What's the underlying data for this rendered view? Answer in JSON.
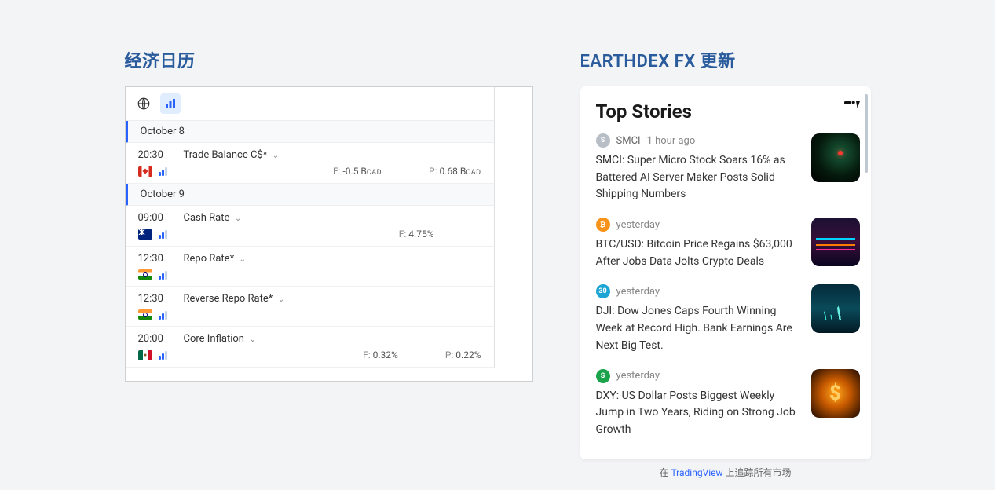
{
  "calendar": {
    "title": "经济日历",
    "dates": [
      {
        "label": "October 8",
        "events": [
          {
            "time": "20:30",
            "name": "Trade Balance C$*",
            "flag": "ca",
            "impact": "dim",
            "forecast_label": "F:",
            "forecast_value": "-0.5 B",
            "forecast_unit": "CAD",
            "prev_label": "P:",
            "prev_value": "0.68 B",
            "prev_unit": "CAD"
          }
        ]
      },
      {
        "label": "October 9",
        "events": [
          {
            "time": "09:00",
            "name": "Cash Rate",
            "flag": "nz",
            "impact": "dim",
            "forecast_label": "F:",
            "forecast_value": "4.75%",
            "forecast_unit": "",
            "prev_label": "",
            "prev_value": "",
            "prev_unit": ""
          },
          {
            "time": "12:30",
            "name": "Repo Rate*",
            "flag": "in",
            "impact": "dim",
            "forecast_label": "",
            "forecast_value": "",
            "forecast_unit": "",
            "prev_label": "",
            "prev_value": "",
            "prev_unit": ""
          },
          {
            "time": "12:30",
            "name": "Reverse Repo Rate*",
            "flag": "in",
            "impact": "dim",
            "forecast_label": "",
            "forecast_value": "",
            "forecast_unit": "",
            "prev_label": "",
            "prev_value": "",
            "prev_unit": ""
          },
          {
            "time": "20:00",
            "name": "Core Inflation",
            "flag": "mx",
            "impact": "dim",
            "forecast_label": "F:",
            "forecast_value": "0.32%",
            "forecast_unit": "",
            "prev_label": "P:",
            "prev_value": "0.22%",
            "prev_unit": ""
          }
        ]
      }
    ]
  },
  "stories": {
    "section_title": "EARTHDEX FX 更新",
    "header": "Top Stories",
    "footer_prefix": "在 ",
    "footer_link": "TradingView",
    "footer_suffix": " 上追踪所有市场",
    "items": [
      {
        "badge_text": "S",
        "badge_color": "#b8bec6",
        "symbol": "SMCI",
        "time": "1 hour ago",
        "headline": "SMCI: Super Micro Stock Soars 16% as Battered AI Server Maker Posts Solid Shipping Numbers",
        "thumb": "th-smci"
      },
      {
        "badge_text": "₿",
        "badge_color": "#f7931a",
        "symbol": "",
        "time": "yesterday",
        "headline": "BTC/USD: Bitcoin Price Regains $63,000 After Jobs Data Jolts Crypto Deals",
        "thumb": "th-btc"
      },
      {
        "badge_text": "30",
        "badge_color": "#1ca5d4",
        "symbol": "",
        "time": "yesterday",
        "headline": "DJI: Dow Jones Caps Fourth Winning Week at Record High. Bank Earnings Are Next Big Test.",
        "thumb": "th-dji"
      },
      {
        "badge_text": "S",
        "badge_color": "#1aa34a",
        "symbol": "",
        "time": "yesterday",
        "headline": "DXY: US Dollar Posts Biggest Weekly Jump in Two Years, Riding on Strong Job Growth",
        "thumb": "th-dxy"
      }
    ]
  },
  "colors": {
    "accent": "#2962ff",
    "title": "#2a5b9c",
    "page_bg": "#f3f4f6"
  }
}
